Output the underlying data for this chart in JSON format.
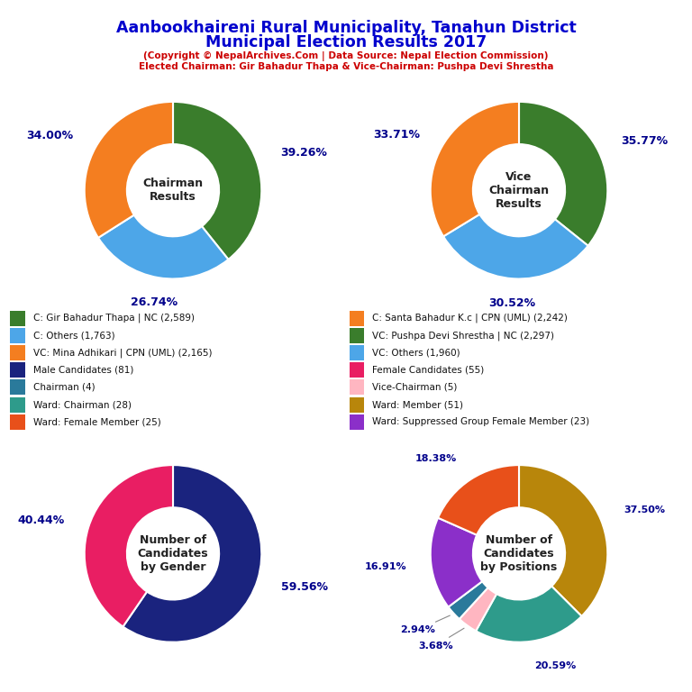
{
  "title_line1": "Aanbookhaireni Rural Municipality, Tanahun District",
  "title_line2": "Municipal Election Results 2017",
  "subtitle1": "(Copyright © NepalArchives.Com | Data Source: Nepal Election Commission)",
  "subtitle2": "Elected Chairman: Gir Bahadur Thapa & Vice-Chairman: Pushpa Devi Shrestha",
  "chairman": {
    "label": "Chairman\nResults",
    "values": [
      39.26,
      26.74,
      34.0
    ],
    "colors": [
      "#3a7d2c",
      "#4da6e8",
      "#f47e20"
    ],
    "labels": [
      "39.26%",
      "26.74%",
      "34.00%"
    ],
    "label_positions": [
      "top",
      "bottom-right",
      "left"
    ],
    "startangle": 90
  },
  "vice_chairman": {
    "label": "Vice\nChairman\nResults",
    "values": [
      35.77,
      30.52,
      33.71
    ],
    "colors": [
      "#3a7d2c",
      "#4da6e8",
      "#f47e20"
    ],
    "labels": [
      "35.77%",
      "30.52%",
      "33.71%"
    ],
    "startangle": 90
  },
  "gender": {
    "label": "Number of\nCandidates\nby Gender",
    "values": [
      59.56,
      40.44
    ],
    "colors": [
      "#1a237e",
      "#e91e63"
    ],
    "labels": [
      "59.56%",
      "40.44%"
    ],
    "startangle": 90
  },
  "positions": {
    "label": "Number of\nCandidates\nby Positions",
    "values": [
      37.5,
      20.59,
      3.68,
      2.94,
      16.91,
      18.38
    ],
    "colors": [
      "#b8860b",
      "#2e9b8b",
      "#ffb6c1",
      "#2a7a9b",
      "#8b2fc9",
      "#e8501a"
    ],
    "labels": [
      "37.50%",
      "20.59%",
      "3.68%",
      "2.94%",
      "16.91%",
      "18.38%"
    ],
    "startangle": 90
  },
  "legend_items": [
    {
      "label": "C: Gir Bahadur Thapa | NC (2,589)",
      "color": "#3a7d2c"
    },
    {
      "label": "C: Others (1,763)",
      "color": "#4da6e8"
    },
    {
      "label": "VC: Mina Adhikari | CPN (UML) (2,165)",
      "color": "#f47e20"
    },
    {
      "label": "Male Candidates (81)",
      "color": "#1a237e"
    },
    {
      "label": "Chairman (4)",
      "color": "#2a7a9b"
    },
    {
      "label": "Ward: Chairman (28)",
      "color": "#2e9b8b"
    },
    {
      "label": "Ward: Female Member (25)",
      "color": "#e8501a"
    },
    {
      "label": "C: Santa Bahadur K.c | CPN (UML) (2,242)",
      "color": "#f47e20"
    },
    {
      "label": "VC: Pushpa Devi Shrestha | NC (2,297)",
      "color": "#3a7d2c"
    },
    {
      "label": "VC: Others (1,960)",
      "color": "#4da6e8"
    },
    {
      "label": "Female Candidates (55)",
      "color": "#e91e63"
    },
    {
      "label": "Vice-Chairman (5)",
      "color": "#ffb6c1"
    },
    {
      "label": "Ward: Member (51)",
      "color": "#b8860b"
    },
    {
      "label": "Ward: Suppressed Group Female Member (23)",
      "color": "#8b2fc9"
    }
  ],
  "title_color": "#0000cd",
  "subtitle_color": "#cc0000",
  "pct_color": "#00008b",
  "bg_color": "#ffffff"
}
